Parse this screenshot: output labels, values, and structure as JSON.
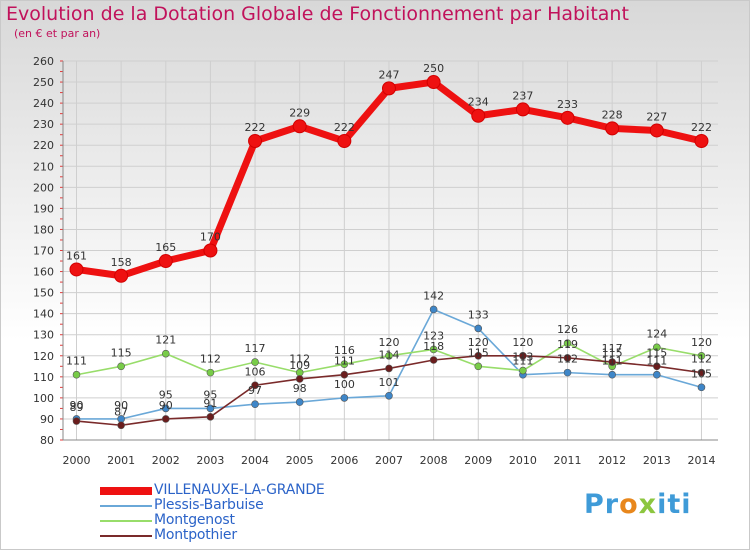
{
  "title": "Evolution de la Dotation Globale de Fonctionnement par Habitant",
  "subtitle": "(en € et par an)",
  "logo": {
    "text": "Proxiti",
    "parts": [
      "Pr",
      "o",
      "x",
      "iti"
    ]
  },
  "colors": {
    "title": "#c1125b",
    "legend_text": "#2b63c8",
    "grid": "#cfcfcf",
    "axis_tick": "#e33a3a"
  },
  "chart_data": {
    "type": "line",
    "title": "Evolution de la Dotation Globale de Fonctionnement par Habitant",
    "ylabel": "(en € et par an)",
    "xlabel": "",
    "x": [
      "2000",
      "2001",
      "2002",
      "2003",
      "2004",
      "2005",
      "2006",
      "2007",
      "2008",
      "2009",
      "2010",
      "2011",
      "2012",
      "2013",
      "2014"
    ],
    "ylim": [
      80,
      260
    ],
    "yticks": [
      80,
      90,
      100,
      110,
      120,
      130,
      140,
      150,
      160,
      170,
      180,
      190,
      200,
      210,
      220,
      230,
      240,
      250,
      260
    ],
    "grid": true,
    "legend_position": "bottom-left",
    "series": [
      {
        "name": "VILLENAUXE-LA-GRANDE",
        "color": "#ee1111",
        "marker_color": "#ee1111",
        "values": [
          161,
          158,
          165,
          170,
          222,
          229,
          222,
          247,
          250,
          234,
          237,
          233,
          228,
          227,
          222
        ],
        "labels": [
          "161",
          "158",
          "165",
          "170",
          "222",
          "229",
          "222",
          "247",
          "250",
          "234",
          "237",
          "233",
          "228",
          "227",
          "222"
        ]
      },
      {
        "name": "Plessis-Barbuise",
        "color": "#6aa8d8",
        "marker_color": "#3e86c8",
        "values": [
          90,
          90,
          95,
          95,
          97,
          98,
          100,
          101,
          142,
          133,
          111,
          112,
          111,
          111,
          105
        ],
        "labels": [
          "90",
          "90",
          "95",
          "95",
          "97",
          "98",
          "100",
          "101",
          "142",
          "133",
          "111",
          "112",
          "111",
          "111",
          "105"
        ]
      },
      {
        "name": "Montgenost",
        "color": "#98dd6a",
        "marker_color": "#78cc48",
        "values": [
          111,
          115,
          121,
          112,
          117,
          112,
          116,
          120,
          123,
          115,
          113,
          126,
          115,
          124,
          120
        ],
        "labels": [
          "111",
          "115",
          "121",
          "112",
          "117",
          "112",
          "116",
          "120",
          "123",
          "115",
          "113",
          "126",
          "115",
          "124",
          "120"
        ]
      },
      {
        "name": "Montpothier",
        "color": "#7a2a2a",
        "marker_color": "#6a1d1d",
        "values": [
          89,
          87,
          90,
          91,
          106,
          109,
          111,
          114,
          118,
          120,
          120,
          119,
          117,
          115,
          112
        ],
        "labels": [
          "89",
          "87",
          "90",
          "91",
          "106",
          "109",
          "111",
          "114",
          "118",
          "120",
          "120",
          "119",
          "117",
          "115",
          "112"
        ]
      }
    ]
  }
}
